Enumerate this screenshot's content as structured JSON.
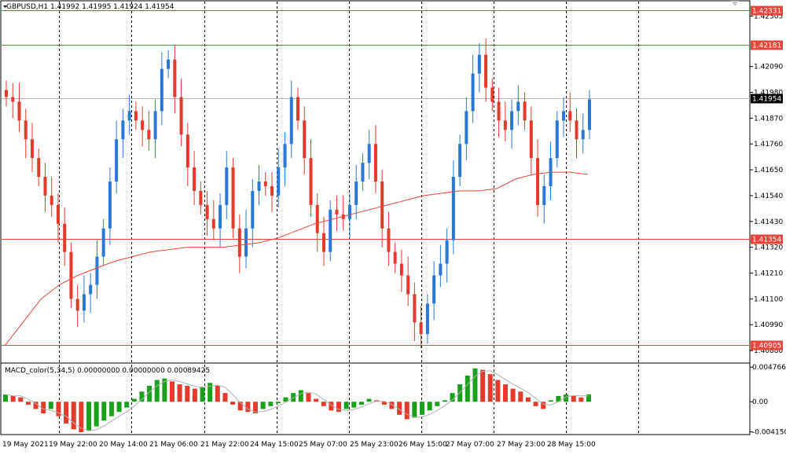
{
  "symbol_header": "GBPUSD,H1  1.41992 1.41995 1.41924 1.41954",
  "macd_header": "MACD_color(5,34,5) 0.00000000 0.00000000 0.00089425",
  "chart_data": {
    "type": "candlestick",
    "symbol": "GBPUSD",
    "timeframe": "H1",
    "ohlc_last": {
      "open": 1.41992,
      "high": 1.41995,
      "low": 1.41924,
      "close": 1.41954
    },
    "price_axis": {
      "ticks": [
        "1.42305",
        "1.42090",
        "1.41980",
        "1.41870",
        "1.41760",
        "1.41650",
        "1.41540",
        "1.41430",
        "1.41320",
        "1.41210",
        "1.41100",
        "1.40990",
        "1.40880"
      ],
      "range": [
        1.4084,
        1.4236
      ]
    },
    "time_axis": [
      "19 May 2021",
      "19 May 22:00",
      "20 May 14:00",
      "21 May 06:00",
      "21 May 22:00",
      "24 May 15:00",
      "25 May 07:00",
      "25 May 23:00",
      "26 May 15:00",
      "27 May 07:00",
      "27 May 23:00",
      "28 May 15:00"
    ],
    "horizontal_levels": [
      {
        "label": "1.42331",
        "value": 1.42331,
        "color": "#e8463c"
      },
      {
        "label": "1.42181",
        "value": 1.42181,
        "color": "#e8463c"
      },
      {
        "label": "1.41354",
        "value": 1.41354,
        "color": "#e8463c"
      },
      {
        "label": "1.40905",
        "value": 1.40905,
        "color": "#e8463c"
      }
    ],
    "current_price": {
      "label": "1.41954",
      "value": 1.41954
    },
    "close_path": [
      1.4196,
      1.4194,
      1.4186,
      1.4178,
      1.417,
      1.4162,
      1.4154,
      1.415,
      1.4142,
      1.413,
      1.411,
      1.4105,
      1.4112,
      1.4116,
      1.4128,
      1.414,
      1.416,
      1.4178,
      1.4186,
      1.419,
      1.4186,
      1.4182,
      1.4178,
      1.419,
      1.4208,
      1.4212,
      1.4196,
      1.418,
      1.4166,
      1.4156,
      1.415,
      1.4144,
      1.414,
      1.415,
      1.4166,
      1.414,
      1.4128,
      1.414,
      1.4156,
      1.416,
      1.4158,
      1.4154,
      1.4166,
      1.4176,
      1.4196,
      1.4186,
      1.417,
      1.415,
      1.4138,
      1.413,
      1.4148,
      1.4146,
      1.4144,
      1.415,
      1.416,
      1.4168,
      1.4176,
      1.416,
      1.414,
      1.413,
      1.4125,
      1.412,
      1.4112,
      1.41,
      1.4095,
      1.4108,
      1.412,
      1.4125,
      1.4135,
      1.4162,
      1.4176,
      1.419,
      1.4206,
      1.4214,
      1.42,
      1.4194,
      1.4186,
      1.4182,
      1.419,
      1.4194,
      1.4186,
      1.417,
      1.415,
      1.4158,
      1.417,
      1.4186,
      1.419,
      1.4186,
      1.4178,
      1.4182,
      1.4195
    ],
    "moving_average": [
      1.409,
      1.41,
      1.411,
      1.4116,
      1.412,
      1.4123,
      1.4126,
      1.4128,
      1.413,
      1.4131,
      1.4132,
      1.4132,
      1.4132,
      1.4133,
      1.4134,
      1.4136,
      1.4139,
      1.4142,
      1.4144,
      1.4146,
      1.4148,
      1.415,
      1.4152,
      1.4154,
      1.4155,
      1.4156,
      1.4156,
      1.4157,
      1.4161,
      1.4163,
      1.4164,
      1.4164,
      1.4163
    ],
    "macd_axis": {
      "ticks": [
        "0.00476612",
        "0.00",
        "-0.00415056"
      ],
      "range": [
        -0.0042,
        0.0049
      ]
    },
    "macd_histogram": [
      0.001,
      0.0008,
      0.0006,
      -0.0004,
      -0.001,
      -0.0016,
      -0.001,
      -0.002,
      -0.003,
      -0.0038,
      -0.0042,
      -0.004,
      -0.0034,
      -0.0026,
      -0.002,
      -0.0014,
      -0.0008,
      0.0004,
      0.0014,
      0.0022,
      0.003,
      0.0032,
      0.0028,
      0.0024,
      0.0022,
      0.0018,
      0.002,
      0.0026,
      0.0022,
      0.0012,
      -0.0004,
      -0.0012,
      -0.0014,
      -0.0016,
      -0.001,
      -0.0006,
      -0.0002,
      0.0006,
      0.0012,
      0.0016,
      0.0012,
      0.0004,
      -0.0006,
      -0.0012,
      -0.0014,
      -0.001,
      -0.0008,
      -0.0004,
      0.0004,
      0.0002,
      -0.0004,
      -0.001,
      -0.0018,
      -0.0024,
      -0.0022,
      -0.0018,
      -0.0012,
      -0.0006,
      0.0002,
      0.0012,
      0.0024,
      0.0036,
      0.0046,
      0.0044,
      0.0038,
      0.003,
      0.0024,
      0.0018,
      0.0014,
      0.0006,
      -0.0006,
      -0.001,
      0.0002,
      0.0008,
      0.001,
      0.0008,
      0.0006,
      0.001
    ],
    "colors": {
      "bull": "#2a78d6",
      "bear": "#e33a2c",
      "macd_up": "#1aa01a",
      "macd_down": "#e33a2c",
      "ma": "#e8463c",
      "grid": "#000000",
      "current_line": "#b8b8b8"
    }
  }
}
